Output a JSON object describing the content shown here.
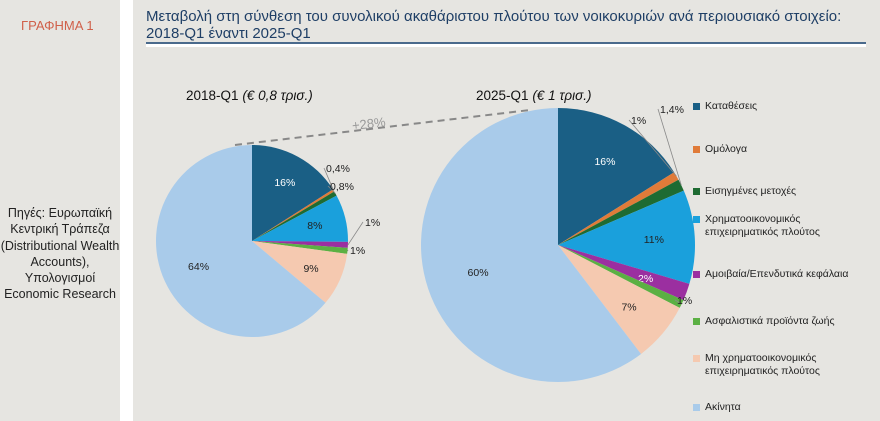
{
  "figure_label": "ΓΡΑΦΗΜΑ 1",
  "source": "Πηγές: Ευρωπαϊκή Κεντρική Τράπεζα (Distributional Wealth Accounts), Υπολογισμοί Economic Research",
  "title": "Μεταβολή στη σύνθεση του συνολικού ακαθάριστου πλούτου των νοικοκυριών ανά περιουσιακό στοιχείο: 2018-Q1 έναντι 2025-Q1",
  "growth_label": "+28%",
  "chart_data": [
    {
      "type": "pie",
      "title": "2018-Q1",
      "title_note": "(€ 0,8 τρισ.)",
      "categories": [
        "Καταθέσεις",
        "Ομόλογα",
        "Εισηγμένες μετοχές",
        "Χρηματοοικονομικός επιχειρηματικός πλούτος",
        "Αμοιβαία/Επενδυτικά κεφάλαια",
        "Ασφαλιστικά προϊόντα ζωής",
        "Μη χρηματοοικονομικός επιχειρηματικός πλούτος",
        "Ακίνητα"
      ],
      "values": [
        16,
        0.4,
        0.8,
        8,
        1,
        1,
        9,
        64
      ],
      "labels": [
        "16%",
        "0,4%",
        "0,8%",
        "8%",
        "1%",
        "1%",
        "9%",
        "64%"
      ]
    },
    {
      "type": "pie",
      "title": "2025-Q1",
      "title_note": "(€ 1 τρισ.)",
      "categories": [
        "Καταθέσεις",
        "Ομόλογα",
        "Εισηγμένες μετοχές",
        "Χρηματοοικονομικός επιχειρηματικός πλούτος",
        "Αμοιβαία/Επενδυτικά κεφάλαια",
        "Ασφαλιστικά προϊόντα ζωής",
        "Μη χρηματοοικονομικός επιχειρηματικός πλούτος",
        "Ακίνητα"
      ],
      "values": [
        16,
        1,
        1.4,
        11,
        2,
        1,
        7,
        60
      ],
      "labels": [
        "16%",
        "1%",
        "1,4%",
        "11%",
        "2%",
        "1%",
        "7%",
        "60%"
      ]
    }
  ],
  "legend": [
    "Καταθέσεις",
    "Ομόλογα",
    "Εισηγμένες μετοχές",
    "Χρηματοοικονομικός επιχειρηματικός πλούτος",
    "Αμοιβαία/Επενδυτικά κεφάλαια",
    "Ασφαλιστικά προϊόντα ζωής",
    "Μη χρηματοοικονομικός επιχειρηματικός πλούτος",
    "Ακίνητα"
  ],
  "colors": [
    "#1a5f85",
    "#e07b39",
    "#1e6b32",
    "#1aa0dc",
    "#9b2fa0",
    "#5bb043",
    "#f5c9b0",
    "#a9cbea"
  ]
}
